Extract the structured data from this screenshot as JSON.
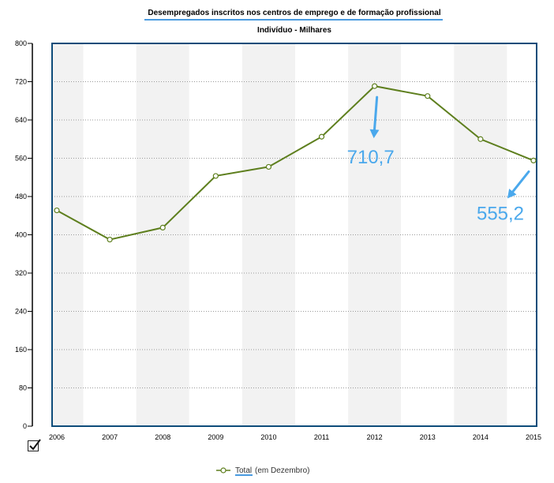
{
  "chart_data": {
    "type": "line",
    "title": "Desempregados inscritos nos centros de emprego e de formação profissional",
    "subtitle": "Indivíduo - Milhares",
    "categories": [
      "2006",
      "2007",
      "2008",
      "2009",
      "2010",
      "2011",
      "2012",
      "2013",
      "2014",
      "2015"
    ],
    "series": [
      {
        "name": "Total",
        "name_suffix": "(em Dezembro)",
        "values": [
          451,
          390,
          415,
          523,
          542,
          605,
          710.7,
          690,
          600,
          555.2
        ]
      }
    ],
    "yticks": [
      0,
      80,
      160,
      240,
      320,
      400,
      480,
      560,
      640,
      720,
      800
    ],
    "ylim": [
      0,
      800
    ],
    "grid": "horizontal-dotted",
    "legend": "bottom-center",
    "annotations": [
      {
        "label": "710,7",
        "category": "2012",
        "value": 710.7
      },
      {
        "label": "555,2",
        "category": "2015",
        "value": 555.2
      }
    ],
    "colors": {
      "line": "#5e7f1e",
      "frame": "#0e4c7a",
      "band": "#f2f2f2",
      "annotation": "#4aa8ec",
      "underline": "#4a9be0"
    }
  },
  "controls": {
    "checkbox_checked": true
  }
}
